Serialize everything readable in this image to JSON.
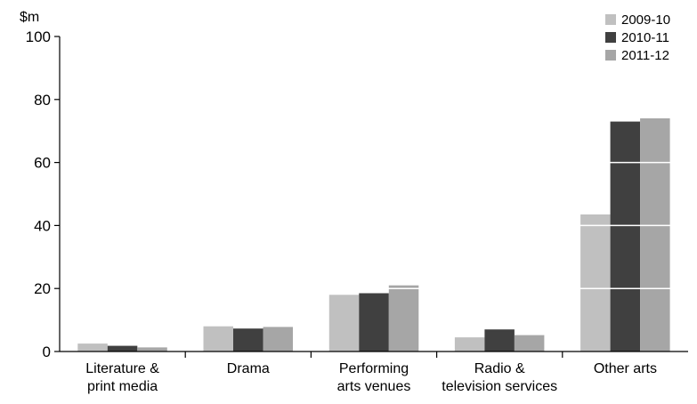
{
  "chart_data": {
    "type": "bar",
    "title": "",
    "unit_label": "$m",
    "xlabel": "",
    "ylabel": "",
    "ylim": [
      0,
      100
    ],
    "yticks": [
      0,
      20,
      40,
      60,
      80,
      100
    ],
    "grid": "horizontal white lines drawn over bars",
    "legend_position": "top-right",
    "categories": [
      [
        "Literature &",
        "print media"
      ],
      [
        "Drama"
      ],
      [
        "Performing",
        "arts venues"
      ],
      [
        "Radio &",
        "television services"
      ],
      [
        "Other arts"
      ]
    ],
    "series": [
      {
        "name": "2009-10",
        "color": "#c0c0c0",
        "values": [
          2.5,
          8.0,
          18.0,
          4.5,
          43.5
        ]
      },
      {
        "name": "2010-11",
        "color": "#404040",
        "values": [
          1.8,
          7.3,
          18.5,
          7.0,
          73.0
        ]
      },
      {
        "name": "2011-12",
        "color": "#a6a6a6",
        "values": [
          1.3,
          7.8,
          21.0,
          5.2,
          74.0
        ]
      }
    ]
  }
}
